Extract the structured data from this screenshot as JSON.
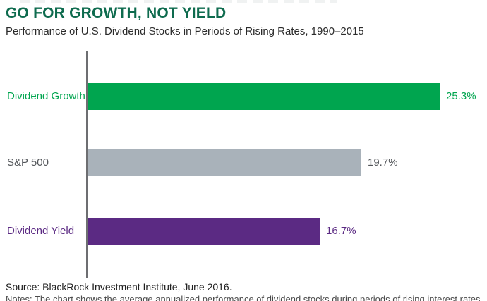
{
  "page": {
    "title": "GO FOR GROWTH, NOT YIELD",
    "subtitle": "Performance of U.S. Dividend Stocks in Periods of Rising Rates, 1990–2015",
    "source": "Source: BlackRock Investment Institute, June 2016.",
    "notes_clipped": "Notes: The chart shows the average annualized performance of dividend stocks during periods of rising interest rates."
  },
  "chart_data": {
    "type": "bar",
    "orientation": "horizontal",
    "title": "GO FOR GROWTH, NOT YIELD",
    "subtitle": "Performance of U.S. Dividend Stocks in Periods of Rising Rates, 1990–2015",
    "categories": [
      "Dividend Growth",
      "S&P 500",
      "Dividend Yield"
    ],
    "values": [
      25.3,
      19.7,
      16.7
    ],
    "value_labels": [
      "25.3%",
      "19.7%",
      "16.7%"
    ],
    "bar_colors": [
      "#00A54F",
      "#A9B2BA",
      "#5B2A83"
    ],
    "label_colors": [
      "#00A54F",
      "#53565A",
      "#5B2A83"
    ],
    "value_label_colors": [
      "#00A54F",
      "#53565A",
      "#5B2A83"
    ],
    "xlim": [
      0,
      28
    ],
    "axis_color": "#6D6E71",
    "grid": false,
    "legend": "none"
  },
  "colors": {
    "title_green": "#0E6B4E",
    "bar_green": "#00A54F",
    "bar_gray": "#A9B2BA",
    "bar_purple": "#5B2A83",
    "axis_gray": "#6D6E71",
    "text_dark": "#2B2B2B"
  }
}
